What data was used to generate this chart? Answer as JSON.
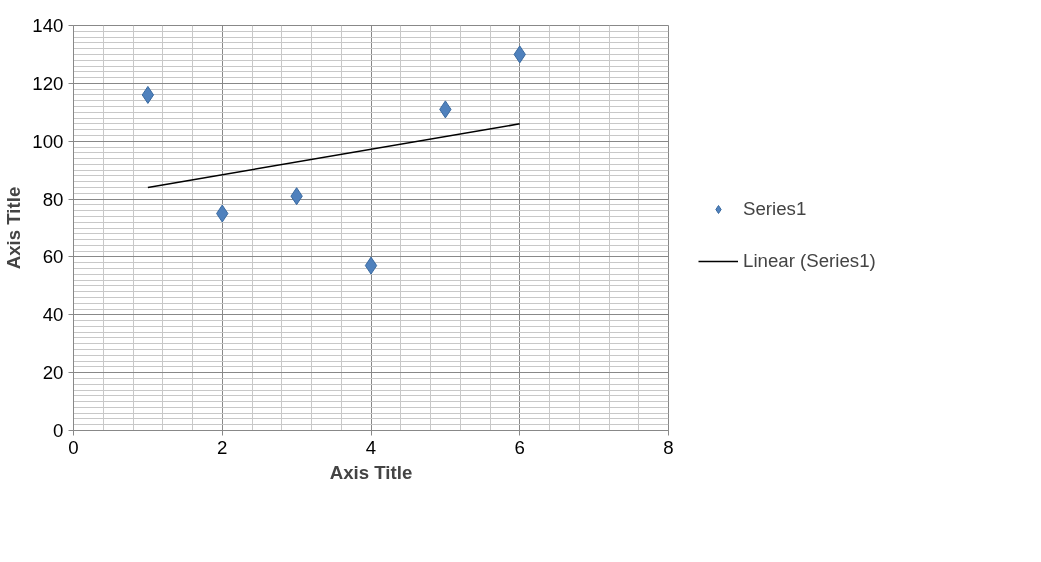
{
  "chart_data": {
    "type": "scatter",
    "xlabel": "Axis Title",
    "ylabel": "Axis Title",
    "xlim": [
      0,
      8
    ],
    "xticks": [
      0,
      2,
      4,
      6,
      8
    ],
    "ylim": [
      0,
      140
    ],
    "yticks": [
      0,
      20,
      40,
      60,
      80,
      100,
      120,
      140
    ],
    "grid": true,
    "legend": "right",
    "series": [
      {
        "name": "Series1",
        "marker": "diamond",
        "color": "#4f81bd",
        "x": [
          1,
          2,
          3,
          4,
          5,
          6
        ],
        "values": [
          116,
          75,
          81,
          57,
          111,
          130
        ]
      },
      {
        "name": "Linear (Series1)",
        "type": "line",
        "color": "#000000",
        "x": [
          1,
          6
        ],
        "values": [
          84,
          106
        ],
        "line_style": "solid"
      }
    ]
  }
}
